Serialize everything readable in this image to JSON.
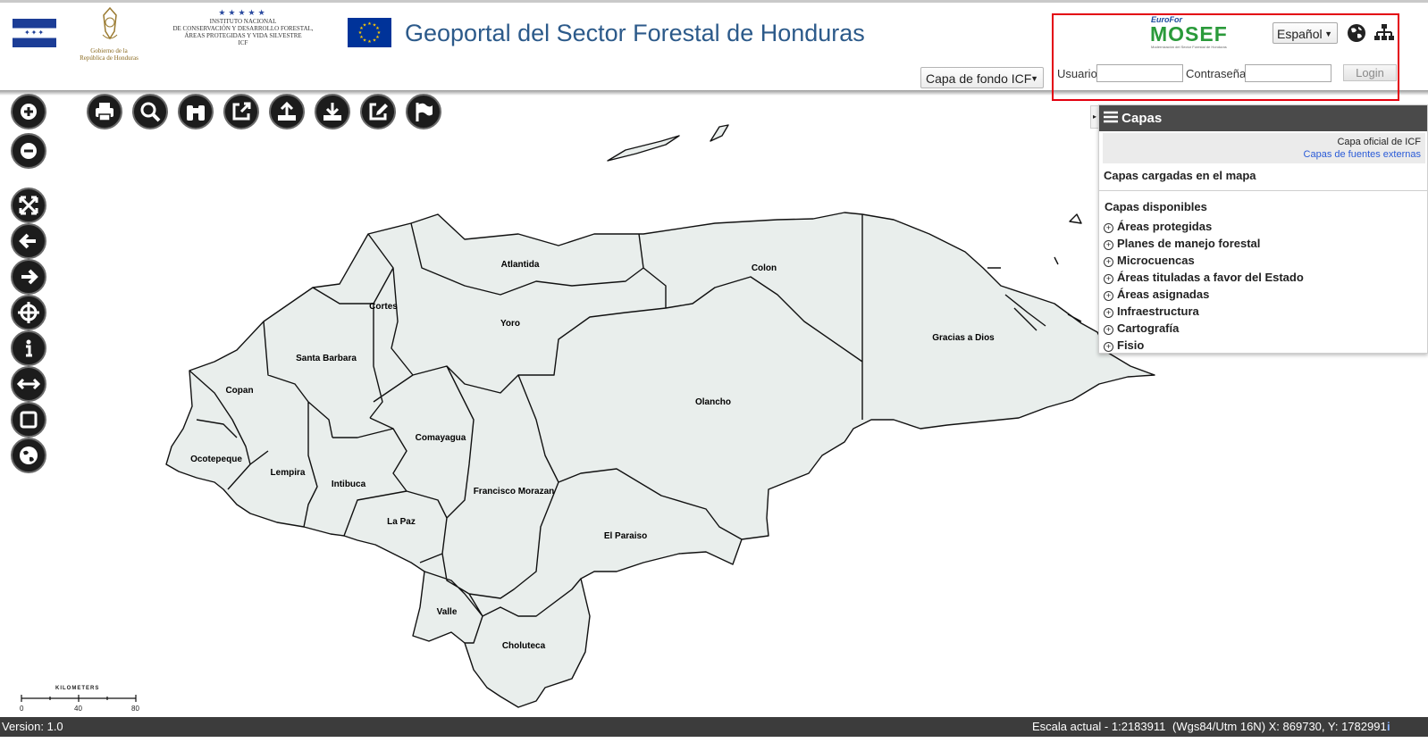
{
  "header": {
    "title": "Geoportal del Sector Forestal de Honduras",
    "gov_caption_line1": "Gobierno de la",
    "gov_caption_line2": "República de Honduras",
    "icf_stars": "★★★★★",
    "icf_line1": "INSTITUTO NACIONAL",
    "icf_line2": "DE CONSERVACIÓN Y DESARROLLO FORESTAL,",
    "icf_line3": "ÁREAS PROTEGIDAS Y VIDA SILVESTRE",
    "icf_line4": "ICF",
    "basemap_select_value": "Capa de fondo ICF",
    "mosef_top": "EuroFor",
    "mosef_name": "MOSEF",
    "mosef_sub": "Modernización del Sector Forestal de Honduras",
    "language_select_value": "Español",
    "usuario_label": "Usuario",
    "contrasena_label": "Contraseña",
    "login_button": "Login",
    "icons": [
      "globe-icon",
      "sitemap-icon"
    ]
  },
  "toolbar_left": [
    "zoom-in-icon",
    "zoom-out-icon",
    "full-extent-icon",
    "back-icon",
    "forward-icon",
    "pan-icon",
    "info-icon",
    "measure-icon",
    "select-box-icon",
    "globe-icon"
  ],
  "toolbar_top": [
    "print-icon",
    "search-icon",
    "binoculars-icon",
    "external-link-icon",
    "upload-icon",
    "download-icon",
    "edit-icon",
    "flag-icon"
  ],
  "layers_panel": {
    "title": "Capas",
    "official_layer": "Capa oficial de ICF",
    "external_layers_link": "Capas de fuentes externas",
    "loaded_title": "Capas cargadas en el mapa",
    "available_title": "Capas disponibles",
    "items": [
      "Áreas protegidas",
      "Planes de manejo forestal",
      "Microcuencas",
      "Áreas tituladas a favor del Estado",
      "Áreas asignadas",
      "Infraestructura",
      "Cartografía",
      "Fisio"
    ]
  },
  "map": {
    "departments": {
      "atlantida": "Atlantida",
      "colon": "Colon",
      "cortes": "Cortes",
      "yoro": "Yoro",
      "santa_barbara": "Santa Barbara",
      "copan": "Copan",
      "olancho": "Olancho",
      "gracias_a_dios": "Gracias a Dios",
      "comayagua": "Comayagua",
      "ocotepeque": "Ocotepeque",
      "lempira": "Lempira",
      "intibuca": "Intibuca",
      "francisco_morazan": "Francisco Morazan",
      "la_paz": "La Paz",
      "el_paraiso": "El Paraiso",
      "valle": "Valle",
      "choluteca": "Choluteca"
    },
    "scale_title": "KILOMETERS",
    "scale_ticks": [
      "0",
      "40",
      "80"
    ]
  },
  "footer": {
    "version": "Version: 1.0",
    "scale": "Escala actual - 1:2183911",
    "coords": "(Wgs84/Utm 16N) X: 869730, Y: 1782991",
    "info_icon": "i"
  }
}
